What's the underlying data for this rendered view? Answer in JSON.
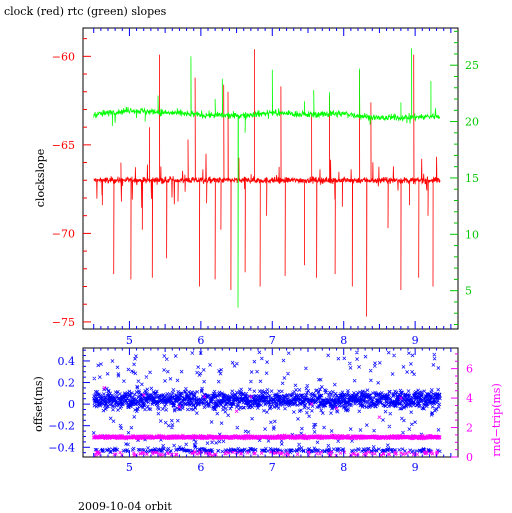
{
  "page": {
    "title": "clock (red) rtc (green) slopes",
    "footer": "2009-10-04 orbit"
  },
  "colors": {
    "clock": "#ff0000",
    "rtc": "#00ff00",
    "offset": "#0000ff",
    "rndtrip": "#ff00ff",
    "axis_black": "#000000",
    "axis_red": "#ff0000",
    "axis_green": "#00c800",
    "axis_blue": "#0000ff",
    "axis_magenta": "#ff00ff"
  },
  "chart_data": [
    {
      "type": "line",
      "title": "clock (red) rtc (green) slopes",
      "xlabel": "",
      "ylabel": "clockslope",
      "xlim": [
        4.35,
        9.6
      ],
      "ylim": [
        -75.4,
        -58.4
      ],
      "y2lim": [
        1.6,
        28.3
      ],
      "x_ticks": [
        5,
        6,
        7,
        8,
        9
      ],
      "x_tick_labels": [
        "5",
        "6",
        "7",
        "8",
        "9"
      ],
      "y_ticks": [
        -60,
        -65,
        -70,
        -75
      ],
      "y_tick_labels": [
        "−60",
        "−65",
        "−70",
        "−75"
      ],
      "y2_ticks": [
        5,
        10,
        15,
        20,
        25
      ],
      "y2_tick_labels": [
        "5",
        "10",
        "15",
        "20",
        "25"
      ],
      "grid": false,
      "legend": "none",
      "series": [
        {
          "axis": "left",
          "color": "#ff0000",
          "x_range": [
            4.5,
            9.35
          ],
          "baseline": -67.0,
          "noise": 0.15,
          "spikes": [
            {
              "x": 4.62,
              "y": -68.4
            },
            {
              "x": 4.78,
              "y": -72.3
            },
            {
              "x": 4.88,
              "y": -66.0
            },
            {
              "x": 5.02,
              "y": -72.6
            },
            {
              "x": 5.18,
              "y": -69.8
            },
            {
              "x": 5.28,
              "y": -64.0
            },
            {
              "x": 5.32,
              "y": -72.5
            },
            {
              "x": 5.42,
              "y": -59.9
            },
            {
              "x": 5.52,
              "y": -71.4
            },
            {
              "x": 5.68,
              "y": -68.2
            },
            {
              "x": 5.82,
              "y": -64.7
            },
            {
              "x": 5.92,
              "y": -61.2
            },
            {
              "x": 5.98,
              "y": -73.0
            },
            {
              "x": 6.08,
              "y": -68.3
            },
            {
              "x": 6.2,
              "y": -72.6
            },
            {
              "x": 6.28,
              "y": -69.8
            },
            {
              "x": 6.32,
              "y": -61.6
            },
            {
              "x": 6.38,
              "y": -62.0
            },
            {
              "x": 6.42,
              "y": -73.2
            },
            {
              "x": 6.62,
              "y": -72.2
            },
            {
              "x": 6.75,
              "y": -59.6
            },
            {
              "x": 6.83,
              "y": -73.0
            },
            {
              "x": 6.92,
              "y": -69.0
            },
            {
              "x": 7.12,
              "y": -61.7
            },
            {
              "x": 7.18,
              "y": -72.4
            },
            {
              "x": 7.45,
              "y": -71.8
            },
            {
              "x": 7.55,
              "y": -63.2
            },
            {
              "x": 7.62,
              "y": -72.5
            },
            {
              "x": 7.8,
              "y": -62.2
            },
            {
              "x": 7.88,
              "y": -72.3
            },
            {
              "x": 7.98,
              "y": -68.5
            },
            {
              "x": 8.12,
              "y": -73.0
            },
            {
              "x": 8.22,
              "y": -60.8
            },
            {
              "x": 8.32,
              "y": -74.7
            },
            {
              "x": 8.38,
              "y": -62.6
            },
            {
              "x": 8.62,
              "y": -69.7
            },
            {
              "x": 8.8,
              "y": -73.2
            },
            {
              "x": 8.92,
              "y": -68.4
            },
            {
              "x": 8.98,
              "y": -59.9
            },
            {
              "x": 9.05,
              "y": -72.5
            },
            {
              "x": 9.18,
              "y": -69.0
            },
            {
              "x": 9.25,
              "y": -73.0
            }
          ]
        },
        {
          "axis": "right",
          "color": "#00ff00",
          "x_range": [
            4.5,
            9.35
          ],
          "profile": [
            {
              "x": 4.5,
              "y": 20.6
            },
            {
              "x": 5.0,
              "y": 21.0
            },
            {
              "x": 5.5,
              "y": 20.8
            },
            {
              "x": 6.0,
              "y": 20.6
            },
            {
              "x": 6.5,
              "y": 20.5
            },
            {
              "x": 7.0,
              "y": 20.8
            },
            {
              "x": 7.5,
              "y": 20.6
            },
            {
              "x": 8.0,
              "y": 20.7
            },
            {
              "x": 8.5,
              "y": 20.3
            },
            {
              "x": 9.0,
              "y": 20.4
            },
            {
              "x": 9.35,
              "y": 20.5
            }
          ],
          "noise": 0.25,
          "spikes": [
            {
              "x": 4.76,
              "y": 19.6
            },
            {
              "x": 5.22,
              "y": 20.0
            },
            {
              "x": 5.4,
              "y": 22.3
            },
            {
              "x": 5.86,
              "y": 25.8
            },
            {
              "x": 6.2,
              "y": 22.0
            },
            {
              "x": 6.3,
              "y": 23.8
            },
            {
              "x": 6.52,
              "y": 3.5
            },
            {
              "x": 6.62,
              "y": 19.0
            },
            {
              "x": 7.0,
              "y": 24.6
            },
            {
              "x": 7.45,
              "y": 21.8
            },
            {
              "x": 7.58,
              "y": 22.8
            },
            {
              "x": 7.8,
              "y": 22.6
            },
            {
              "x": 8.22,
              "y": 24.7
            },
            {
              "x": 8.8,
              "y": 21.7
            },
            {
              "x": 8.95,
              "y": 26.5
            },
            {
              "x": 9.22,
              "y": 23.6
            }
          ]
        }
      ]
    },
    {
      "type": "scatter",
      "xlabel": "",
      "ylabel": "offset(ms)",
      "y2label": "rnd−trip(ms)",
      "xlim": [
        4.35,
        9.6
      ],
      "ylim": [
        -0.49,
        0.52
      ],
      "y2lim": [
        0,
        7.4
      ],
      "x_ticks": [
        5,
        6,
        7,
        8,
        9
      ],
      "x_tick_labels": [
        "5",
        "6",
        "7",
        "8",
        "9"
      ],
      "y_ticks": [
        0.4,
        0.2,
        0,
        -0.2,
        -0.4
      ],
      "y_tick_labels": [
        "0.4",
        "0.2",
        "0",
        "−0.2",
        "−0.4"
      ],
      "y2_ticks": [
        0,
        2,
        4,
        6
      ],
      "y2_tick_labels": [
        "0",
        "2",
        "4",
        "6"
      ],
      "grid": false,
      "legend": "none",
      "series": [
        {
          "axis": "left",
          "marker": "x",
          "color": "#0000ff",
          "x_range": [
            4.5,
            9.35
          ],
          "core_center": 0.04,
          "core_spread": 0.07,
          "scatter_range": [
            -0.45,
            0.48
          ],
          "lower_band": -0.43
        },
        {
          "axis": "right",
          "marker": "x",
          "color": "#ff00ff",
          "x_range": [
            4.5,
            9.35
          ],
          "level": 1.35,
          "level_spread": 0.08,
          "low_level": 0.1,
          "high_outliers": [
            {
              "x": 4.65,
              "y": 4.7
            },
            {
              "x": 5.2,
              "y": 4.2
            },
            {
              "x": 5.7,
              "y": 3.4
            },
            {
              "x": 6.05,
              "y": 4.1
            },
            {
              "x": 6.5,
              "y": 3.1
            },
            {
              "x": 6.7,
              "y": 4.1
            },
            {
              "x": 7.55,
              "y": 3.6
            },
            {
              "x": 7.9,
              "y": 3.3
            },
            {
              "x": 8.5,
              "y": 2.7
            },
            {
              "x": 8.8,
              "y": 4.0
            }
          ]
        }
      ]
    }
  ]
}
